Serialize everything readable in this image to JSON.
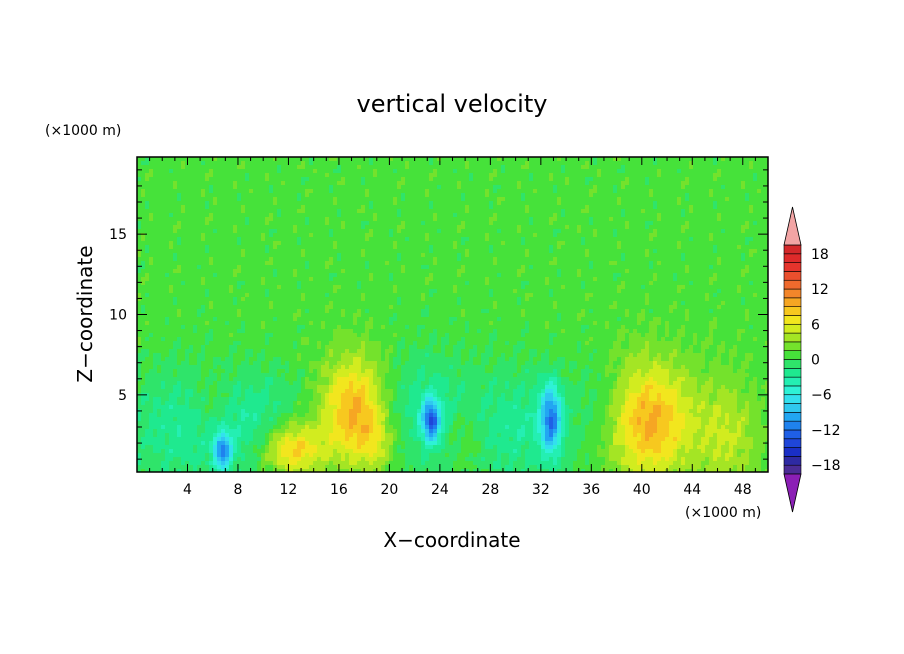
{
  "chart_data": {
    "type": "heatmap",
    "title": "vertical velocity",
    "xlabel": "X−coordinate",
    "ylabel": "Z−coordinate",
    "x_unit": "(×1000 m)",
    "y_unit": "(×1000 m)",
    "xlim": [
      0,
      50
    ],
    "ylim": [
      0.2,
      19.8
    ],
    "x_ticks": [
      4,
      8,
      12,
      16,
      20,
      24,
      28,
      32,
      36,
      40,
      44,
      48
    ],
    "x_tick_labels": [
      "4",
      "8",
      "12",
      "16",
      "20",
      "24",
      "28",
      "32",
      "36",
      "40",
      "44",
      "48"
    ],
    "y_ticks": [
      5,
      10,
      15
    ],
    "y_tick_labels": [
      "5",
      "10",
      "15"
    ],
    "colorbar": {
      "levels": [
        -21,
        -19.5,
        -18,
        -16.5,
        -15,
        -13.5,
        -12,
        -10.5,
        -9,
        -7.5,
        -6,
        -4.5,
        -3,
        -1.5,
        0,
        1.5,
        3,
        4.5,
        6,
        7.5,
        9,
        10.5,
        12,
        13.5,
        15,
        16.5,
        18,
        19.5,
        21
      ],
      "tick_values": [
        18,
        12,
        6,
        0,
        -6,
        -12,
        -18
      ],
      "tick_labels": [
        "18",
        "12",
        "6",
        "0",
        "−6",
        "−12",
        "−18"
      ],
      "colors": [
        "#7a1f9a",
        "#4b2c96",
        "#2e2aa3",
        "#1a2fc6",
        "#1f46d9",
        "#1f5fe6",
        "#1f82ee",
        "#22a6f2",
        "#2fc8ef",
        "#33e0ee",
        "#2ef2d6",
        "#24efb2",
        "#1fe98f",
        "#2fe46a",
        "#46e23a",
        "#74e22c",
        "#a4e524",
        "#d2ec1f",
        "#f2e61e",
        "#f7c81f",
        "#f6a623",
        "#f3862a",
        "#ef6a2d",
        "#ea4f2d",
        "#e5342c",
        "#de2a2a",
        "#d4282a",
        "#c92a2a",
        "#f0a2a2"
      ],
      "under_color": "#8b1fb5",
      "over_color": "#f2a4a4"
    },
    "features": [
      {
        "x": 12.3,
        "z": 1.6,
        "sx": 1.7,
        "sz": 1.2,
        "value": 8
      },
      {
        "x": 17.2,
        "z": 4.0,
        "sx": 1.8,
        "sz": 2.3,
        "value": 9
      },
      {
        "x": 19.0,
        "z": 1.8,
        "sx": 1.0,
        "sz": 1.2,
        "value": 3
      },
      {
        "x": 40.6,
        "z": 3.3,
        "sx": 2.4,
        "sz": 2.6,
        "value": 9
      },
      {
        "x": 46.8,
        "z": 2.3,
        "sx": 1.8,
        "sz": 2.6,
        "value": 4
      },
      {
        "x": 6.8,
        "z": 1.5,
        "sx": 0.5,
        "sz": 0.8,
        "value": -10
      },
      {
        "x": 23.3,
        "z": 3.4,
        "sx": 0.5,
        "sz": 0.9,
        "value": -12
      },
      {
        "x": 32.8,
        "z": 3.5,
        "sx": 0.6,
        "sz": 1.5,
        "value": -11
      },
      {
        "x": 3.5,
        "z": 3.2,
        "sx": 3.0,
        "sz": 2.6,
        "value": -3
      },
      {
        "x": 9.5,
        "z": 3.4,
        "sx": 2.4,
        "sz": 2.2,
        "value": -3
      },
      {
        "x": 22.8,
        "z": 4.3,
        "sx": 2.5,
        "sz": 2.5,
        "value": -3
      },
      {
        "x": 30.2,
        "z": 3.2,
        "sx": 2.8,
        "sz": 2.5,
        "value": -3
      },
      {
        "x": 36.8,
        "z": 4.5,
        "sx": 1.5,
        "sz": 2.0,
        "value": -2
      },
      {
        "x": 26.0,
        "z": 2.5,
        "sx": 1.0,
        "sz": 1.4,
        "value": 2
      },
      {
        "x": 6.0,
        "z": 4.5,
        "sx": 1.2,
        "sz": 1.4,
        "value": 2
      }
    ]
  }
}
